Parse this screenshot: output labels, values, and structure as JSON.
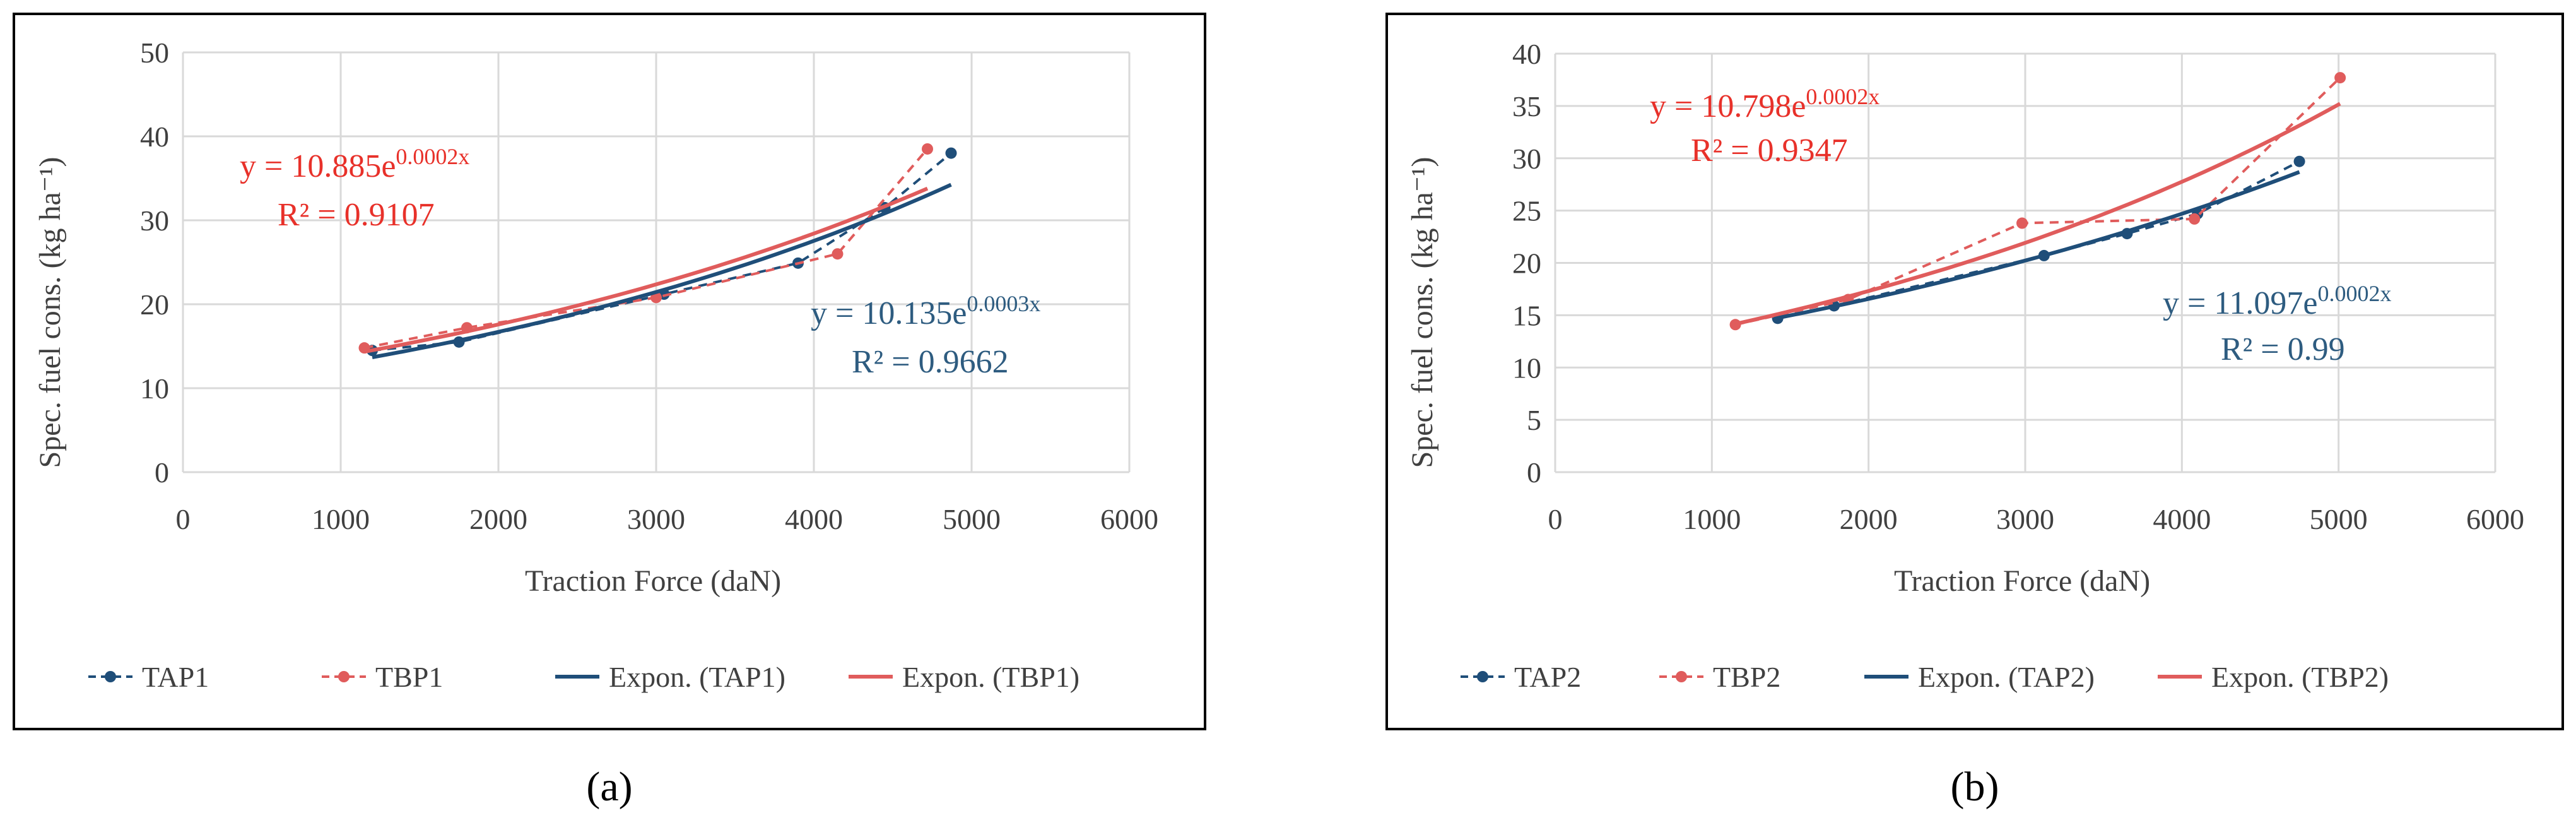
{
  "panel_labels": [
    "(a)",
    "(b)"
  ],
  "colors": {
    "tap": "#1f4e79",
    "tbp": "#e05c5c",
    "eq_tap": "#2e5c80",
    "eq_tbp": "#e8312a",
    "grid": "#d9d9d9",
    "text": "#404040",
    "frame": "#000000"
  },
  "chart_data": [
    {
      "type": "scatter",
      "title": "",
      "xlabel": "Traction Force (daN)",
      "ylabel": "Spec.  fuel cons. (kg ha⁻¹)",
      "xlim": [
        0,
        6000
      ],
      "ylim": [
        0,
        50
      ],
      "x_ticks": [
        0,
        1000,
        2000,
        3000,
        4000,
        5000,
        6000
      ],
      "y_ticks": [
        0,
        10,
        20,
        30,
        40,
        50
      ],
      "x_tick_labels": [
        "0",
        "1000",
        "2000",
        "3000",
        "4000",
        "5000",
        "6000"
      ],
      "y_tick_labels": [
        "0",
        "10",
        "20",
        "30",
        "40",
        "50"
      ],
      "grid": true,
      "legend_position": "bottom",
      "series": [
        {
          "name": "TAP1",
          "style": "dashed-markers",
          "color_key": "tap",
          "x": [
            1200,
            1750,
            3050,
            3900,
            4450,
            4870
          ],
          "y": [
            14.5,
            15.5,
            21.2,
            24.9,
            31.5,
            38.0
          ]
        },
        {
          "name": "TBP1",
          "style": "dashed-markers",
          "color_key": "tbp",
          "x": [
            1150,
            1800,
            3000,
            4150,
            4720
          ],
          "y": [
            14.8,
            17.2,
            20.8,
            26.0,
            38.5
          ]
        },
        {
          "name": "Expon. (TAP1)",
          "style": "trend",
          "color_key": "tap",
          "a": 10.135,
          "b": 0.00025,
          "x_range": [
            1200,
            4870
          ]
        },
        {
          "name": "Expon. (TBP1)",
          "style": "trend",
          "color_key": "tbp",
          "a": 10.885,
          "b": 0.00024,
          "x_range": [
            1150,
            4720
          ]
        }
      ],
      "equations": {
        "tbp": {
          "y_text": "y = 10.885e",
          "exp": "0.0002x",
          "r2": "R² = 0.9107"
        },
        "tap": {
          "y_text": "y = 10.135e",
          "exp": "0.0003x",
          "r2": "R² = 0.9662"
        }
      }
    },
    {
      "type": "scatter",
      "title": "",
      "xlabel": "Traction Force (daN)",
      "ylabel": "Spec.  fuel cons. (kg ha⁻¹)",
      "xlim": [
        0,
        6000
      ],
      "ylim": [
        0,
        40
      ],
      "x_ticks": [
        0,
        1000,
        2000,
        3000,
        4000,
        5000,
        6000
      ],
      "y_ticks": [
        0,
        5,
        10,
        15,
        20,
        25,
        30,
        35,
        40
      ],
      "x_tick_labels": [
        "0",
        "1000",
        "2000",
        "3000",
        "4000",
        "5000",
        "6000"
      ],
      "y_tick_labels": [
        "0",
        "5",
        "10",
        "15",
        "20",
        "25",
        "30",
        "35",
        "40"
      ],
      "grid": true,
      "legend_position": "bottom",
      "series": [
        {
          "name": "TAP2",
          "style": "dashed-markers",
          "color_key": "tap",
          "x": [
            1420,
            1780,
            3120,
            3650,
            4100,
            4750
          ],
          "y": [
            14.7,
            15.9,
            20.7,
            22.8,
            24.7,
            29.7
          ]
        },
        {
          "name": "TBP2",
          "style": "dashed-markers",
          "color_key": "tbp",
          "x": [
            1150,
            1870,
            2980,
            4080,
            5010
          ],
          "y": [
            14.1,
            16.5,
            23.8,
            24.2,
            37.7
          ]
        },
        {
          "name": "Expon. (TAP2)",
          "style": "trend",
          "color_key": "tap",
          "a": 11.097,
          "b": 0.0002,
          "x_range": [
            1420,
            4750
          ]
        },
        {
          "name": "Expon. (TBP2)",
          "style": "trend",
          "color_key": "tbp",
          "a": 10.798,
          "b": 0.000236,
          "x_range": [
            1150,
            5010
          ]
        }
      ],
      "equations": {
        "tbp": {
          "y_text": "y = 10.798e",
          "exp": "0.0002x",
          "r2": "R² = 0.9347"
        },
        "tap": {
          "y_text": "y = 11.097e",
          "exp": "0.0002x",
          "r2": "R² = 0.99"
        }
      }
    }
  ]
}
